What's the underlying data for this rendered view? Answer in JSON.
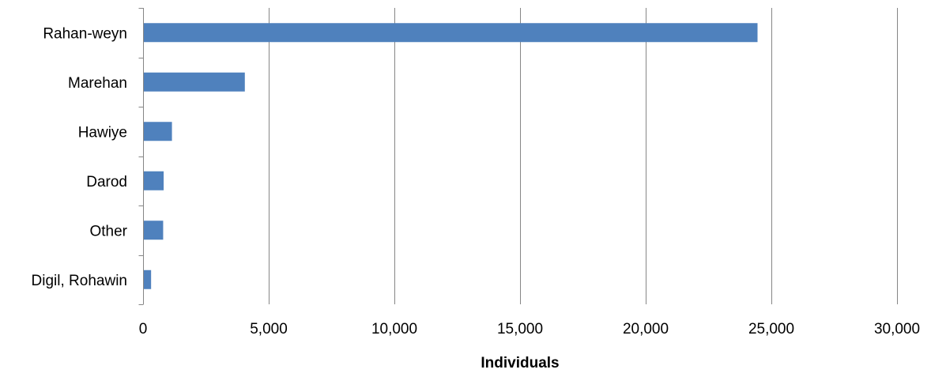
{
  "chart_data": {
    "type": "bar",
    "orientation": "horizontal",
    "categories": [
      "Rahan-weyn",
      "Marehan",
      "Hawiye",
      "Darod",
      "Other",
      "Digil, Rohawin"
    ],
    "values": [
      24450,
      4050,
      1150,
      820,
      800,
      320
    ],
    "xlabel": "Individuals",
    "ylabel": "",
    "xlim": [
      0,
      30000
    ],
    "xticks": [
      0,
      5000,
      10000,
      15000,
      20000,
      25000,
      30000
    ],
    "xtick_labels": [
      "0",
      "5,000",
      "10,000",
      "15,000",
      "20,000",
      "25,000",
      "30,000"
    ],
    "grid": "vertical",
    "legend": "none",
    "bar_color": "#4F81BD",
    "grid_color": "#868686",
    "axis_color": "#868686"
  }
}
